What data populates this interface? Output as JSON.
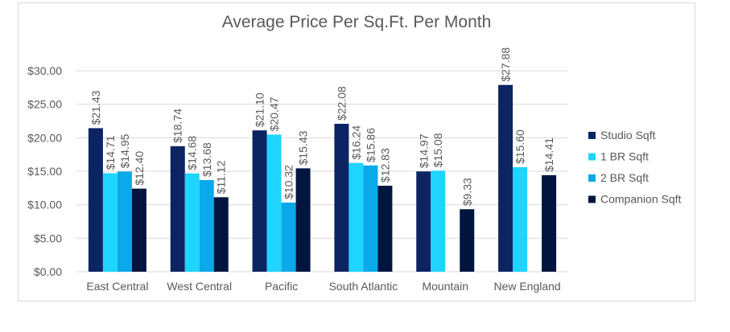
{
  "chart_data": {
    "type": "bar",
    "title": "Average Price Per Sq.Ft. Per Month",
    "categories": [
      "East Central",
      "West Central",
      "Pacific",
      "South Atlantic",
      "Mountain",
      "New England"
    ],
    "series": [
      {
        "name": "Studio Sqft",
        "color": "#0d2463",
        "values": [
          21.43,
          18.74,
          21.1,
          22.08,
          14.97,
          27.88
        ]
      },
      {
        "name": "1 BR Sqft",
        "color": "#1fd4ff",
        "values": [
          14.71,
          14.68,
          20.47,
          16.24,
          15.08,
          15.6
        ]
      },
      {
        "name": "2 BR Sqft",
        "color": "#0aa9ea",
        "values": [
          14.95,
          13.68,
          10.32,
          15.86,
          null,
          null
        ]
      },
      {
        "name": "Companion Sqft",
        "color": "#02153f",
        "values": [
          12.4,
          11.12,
          15.43,
          12.83,
          9.33,
          14.41
        ]
      }
    ],
    "ylim": [
      0,
      30
    ],
    "yticks": [
      "$0.00",
      "$5.00",
      "$10.00",
      "$15.00",
      "$20.00",
      "$25.00",
      "$30.00"
    ],
    "grid": true,
    "legend": "right",
    "data_labels": true,
    "xlabel": "",
    "ylabel": ""
  }
}
